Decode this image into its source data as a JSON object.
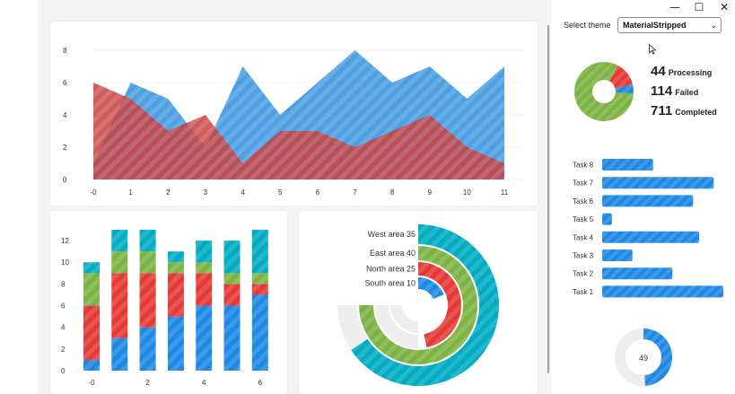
{
  "window": {
    "minimize_glyph": "—",
    "maximize_glyph": "☐",
    "close_glyph": "✕"
  },
  "theme": {
    "label": "Select theme",
    "selected": "MaterialStripped"
  },
  "colors": {
    "blue": "#2f8fde",
    "red": "#c8413f",
    "bar_blue": "#1e88e5",
    "bar_red": "#e53935",
    "bar_green": "#7cb342",
    "bar_cyan": "#00acc1",
    "stripe_light": "#ffffff",
    "track": "#eeeeee"
  },
  "status": {
    "processing": {
      "value": "44",
      "label": "Processing"
    },
    "failed": {
      "value": "114",
      "label": "Failed"
    },
    "completed": {
      "value": "711",
      "label": "Completed"
    }
  },
  "gauge": {
    "value": "49",
    "fraction": 0.49
  },
  "area_chart": {
    "chart_data": {
      "type": "area",
      "x": [
        0,
        1,
        2,
        3,
        4,
        5,
        6,
        7,
        8,
        9,
        10,
        11
      ],
      "x_tick_labels": [
        "-0",
        "1",
        "2",
        "3",
        "4",
        "5",
        "6",
        "7",
        "8",
        "9",
        "10",
        "11"
      ],
      "y_tick_labels": [
        "0",
        "2",
        "4",
        "6",
        "8"
      ],
      "ylim": [
        0,
        8
      ],
      "series": [
        {
          "values": [
            1,
            6,
            5,
            2,
            7,
            4,
            6,
            8,
            6,
            7,
            5,
            7
          ]
        },
        {
          "values": [
            6,
            5,
            3,
            4,
            1,
            3,
            3,
            2,
            3,
            4,
            2,
            1
          ]
        }
      ]
    }
  },
  "stacked_bar": {
    "chart_data": {
      "type": "bar",
      "stacked": true,
      "categories": [
        "0",
        "1",
        "2",
        "3",
        "4",
        "5",
        "6"
      ],
      "x_tick_labels": [
        "-0",
        "2",
        "4",
        "6"
      ],
      "y_tick_labels": [
        "0",
        "2",
        "4",
        "6",
        "8",
        "10",
        "12"
      ],
      "ylim": [
        0,
        13
      ],
      "series": [
        {
          "values": [
            1,
            3,
            4,
            5,
            6,
            6,
            7
          ]
        },
        {
          "values": [
            5,
            6,
            5,
            4,
            3,
            2,
            1
          ]
        },
        {
          "values": [
            3,
            2,
            2,
            1,
            1,
            1,
            1
          ]
        },
        {
          "values": [
            1,
            2,
            2,
            1,
            2,
            3,
            4
          ]
        }
      ]
    }
  },
  "radial_bar": {
    "chart_data": {
      "type": "radial-bar",
      "series": [
        {
          "name": "West area",
          "value": 35,
          "label": "West area 35"
        },
        {
          "name": "East area",
          "value": 40,
          "label": "East area 40"
        },
        {
          "name": "North area",
          "value": 25,
          "label": "North area 25"
        },
        {
          "name": "South area",
          "value": 10,
          "label": "South area 10"
        }
      ],
      "max": 40
    }
  },
  "tasks": {
    "chart_data": {
      "type": "bar",
      "orientation": "horizontal",
      "categories": [
        "Task 8",
        "Task 7",
        "Task 6",
        "Task 5",
        "Task 4",
        "Task 3",
        "Task 2",
        "Task 1"
      ],
      "values": [
        4.2,
        9.2,
        7.5,
        0.8,
        8.0,
        2.5,
        5.8,
        10.0
      ],
      "xlim": [
        0,
        10
      ]
    }
  },
  "status_donut": {
    "chart_data": {
      "type": "pie",
      "categories": [
        "Completed",
        "Failed",
        "Processing"
      ],
      "values": [
        711,
        114,
        44
      ]
    }
  }
}
